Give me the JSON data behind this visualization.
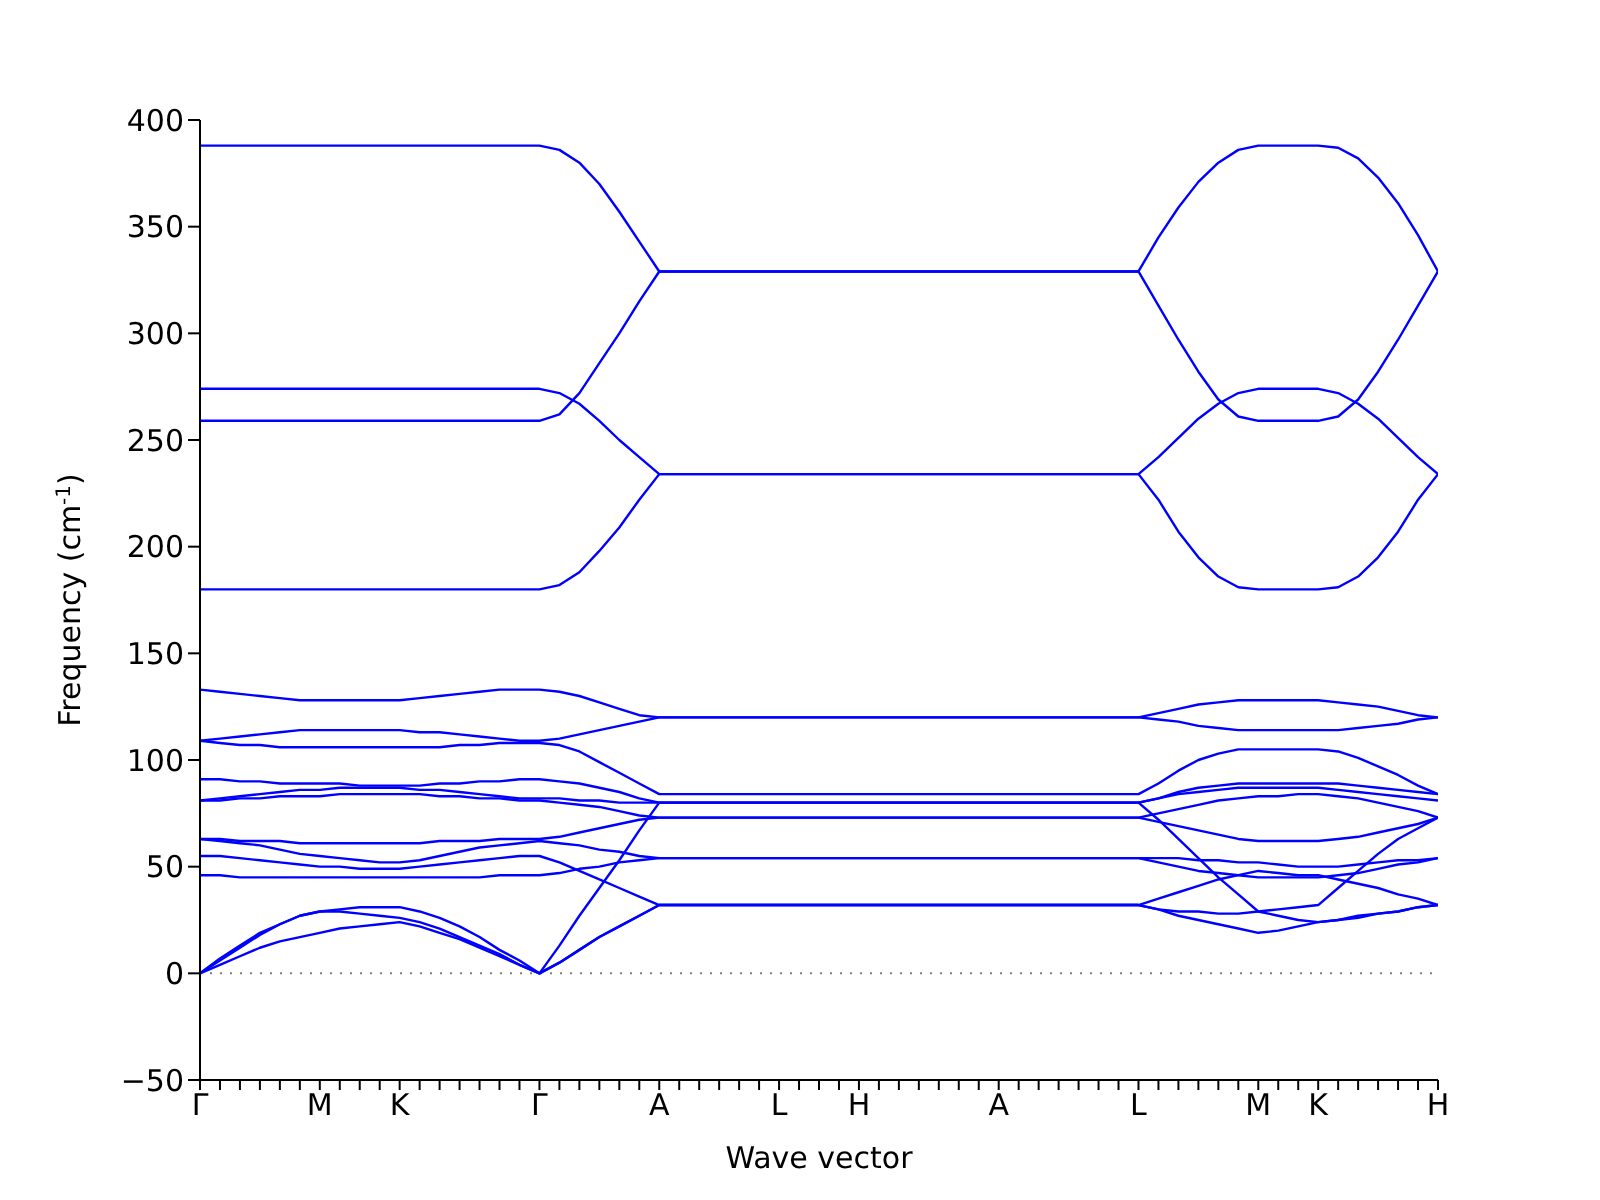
{
  "chart_data": {
    "type": "line",
    "xlabel": "Wave vector",
    "ylabel": "Frequency (cm$^{-1}$)",
    "categories": [
      "Γ",
      null,
      null,
      null,
      null,
      null,
      "M",
      null,
      null,
      null,
      "K",
      null,
      null,
      null,
      null,
      null,
      null,
      "Γ",
      null,
      null,
      null,
      null,
      null,
      "A",
      null,
      null,
      null,
      null,
      null,
      "L",
      null,
      null,
      null,
      "H",
      null,
      null,
      null,
      null,
      null,
      null,
      "A",
      null,
      null,
      null,
      null,
      null,
      null,
      "L",
      null,
      null,
      null,
      null,
      null,
      "M",
      null,
      null,
      "K",
      null,
      null,
      null,
      null,
      null,
      "H"
    ],
    "ylim": [
      -50,
      400
    ],
    "yticks": [
      -50,
      0,
      50,
      100,
      150,
      200,
      250,
      300,
      350,
      400
    ],
    "grid": false,
    "ref_lines": [
      {
        "axis": "y",
        "value": 0,
        "color": "#808080",
        "line_style": "dotted"
      }
    ],
    "series": [
      {
        "color": "#0000ff",
        "values": [
          388,
          388,
          388,
          388,
          388,
          388,
          388,
          388,
          388,
          388,
          388,
          388,
          388,
          388,
          388,
          388,
          388,
          388,
          386,
          380,
          370,
          357,
          343,
          329,
          329,
          329,
          329,
          329,
          329,
          329,
          329,
          329,
          329,
          329,
          329,
          329,
          329,
          329,
          329,
          329,
          329,
          329,
          329,
          329,
          329,
          329,
          329,
          329,
          345,
          359,
          371,
          380,
          386,
          388,
          388,
          388,
          388,
          387,
          382,
          373,
          361,
          346,
          329
        ]
      },
      {
        "color": "#0000ff",
        "values": [
          259,
          259,
          259,
          259,
          259,
          259,
          259,
          259,
          259,
          259,
          259,
          259,
          259,
          259,
          259,
          259,
          259,
          259,
          262,
          272,
          286,
          300,
          315,
          329,
          329,
          329,
          329,
          329,
          329,
          329,
          329,
          329,
          329,
          329,
          329,
          329,
          329,
          329,
          329,
          329,
          329,
          329,
          329,
          329,
          329,
          329,
          329,
          329,
          313,
          297,
          282,
          269,
          261,
          259,
          259,
          259,
          259,
          261,
          269,
          282,
          297,
          313,
          329
        ]
      },
      {
        "color": "#0000ff",
        "values": [
          274,
          274,
          274,
          274,
          274,
          274,
          274,
          274,
          274,
          274,
          274,
          274,
          274,
          274,
          274,
          274,
          274,
          274,
          272,
          267,
          259,
          250,
          242,
          234,
          234,
          234,
          234,
          234,
          234,
          234,
          234,
          234,
          234,
          234,
          234,
          234,
          234,
          234,
          234,
          234,
          234,
          234,
          234,
          234,
          234,
          234,
          234,
          234,
          242,
          251,
          260,
          267,
          272,
          274,
          274,
          274,
          274,
          272,
          267,
          260,
          251,
          242,
          234
        ]
      },
      {
        "color": "#0000ff",
        "values": [
          180,
          180,
          180,
          180,
          180,
          180,
          180,
          180,
          180,
          180,
          180,
          180,
          180,
          180,
          180,
          180,
          180,
          180,
          182,
          188,
          198,
          209,
          222,
          234,
          234,
          234,
          234,
          234,
          234,
          234,
          234,
          234,
          234,
          234,
          234,
          234,
          234,
          234,
          234,
          234,
          234,
          234,
          234,
          234,
          234,
          234,
          234,
          234,
          222,
          207,
          195,
          186,
          181,
          180,
          180,
          180,
          180,
          181,
          186,
          195,
          207,
          222,
          234
        ]
      },
      {
        "color": "#0000ff",
        "values": [
          133,
          132,
          131,
          130,
          129,
          128,
          128,
          128,
          128,
          128,
          128,
          129,
          130,
          131,
          132,
          133,
          133,
          133,
          132,
          130,
          127,
          124,
          121,
          120,
          120,
          120,
          120,
          120,
          120,
          120,
          120,
          120,
          120,
          120,
          120,
          120,
          120,
          120,
          120,
          120,
          120,
          120,
          120,
          120,
          120,
          120,
          120,
          120,
          122,
          124,
          126,
          127,
          128,
          128,
          128,
          128,
          128,
          127,
          126,
          125,
          123,
          121,
          120
        ]
      },
      {
        "color": "#0000ff",
        "values": [
          109,
          110,
          111,
          112,
          113,
          114,
          114,
          114,
          114,
          114,
          114,
          113,
          113,
          112,
          111,
          110,
          109,
          109,
          110,
          112,
          114,
          116,
          118,
          120,
          120,
          120,
          120,
          120,
          120,
          120,
          120,
          120,
          120,
          120,
          120,
          120,
          120,
          120,
          120,
          120,
          120,
          120,
          120,
          120,
          120,
          120,
          120,
          120,
          119,
          118,
          116,
          115,
          114,
          114,
          114,
          114,
          114,
          114,
          115,
          116,
          117,
          119,
          120
        ]
      },
      {
        "color": "#0000ff",
        "values": [
          109,
          108,
          107,
          107,
          106,
          106,
          106,
          106,
          106,
          106,
          106,
          106,
          106,
          107,
          107,
          108,
          108,
          108,
          107,
          104,
          99,
          94,
          89,
          84,
          84,
          84,
          84,
          84,
          84,
          84,
          84,
          84,
          84,
          84,
          84,
          84,
          84,
          84,
          84,
          84,
          84,
          84,
          84,
          84,
          84,
          84,
          84,
          84,
          89,
          95,
          100,
          103,
          105,
          105,
          105,
          105,
          105,
          104,
          101,
          97,
          93,
          88,
          84
        ]
      },
      {
        "color": "#0000ff",
        "values": [
          91,
          91,
          90,
          90,
          89,
          89,
          89,
          89,
          88,
          88,
          88,
          88,
          89,
          89,
          90,
          90,
          91,
          91,
          90,
          89,
          87,
          85,
          82,
          80,
          80,
          80,
          80,
          80,
          80,
          80,
          80,
          80,
          80,
          80,
          80,
          80,
          80,
          80,
          80,
          80,
          80,
          80,
          80,
          80,
          80,
          80,
          80,
          80,
          82,
          85,
          87,
          88,
          89,
          89,
          89,
          89,
          89,
          89,
          88,
          87,
          86,
          85,
          84
        ]
      },
      {
        "color": "#0000ff",
        "values": [
          81,
          82,
          83,
          84,
          85,
          86,
          86,
          87,
          87,
          87,
          87,
          86,
          86,
          85,
          84,
          83,
          82,
          82,
          82,
          81,
          81,
          80,
          80,
          80,
          80,
          80,
          80,
          80,
          80,
          80,
          80,
          80,
          80,
          80,
          80,
          80,
          80,
          80,
          80,
          80,
          80,
          80,
          80,
          80,
          80,
          80,
          80,
          80,
          82,
          84,
          85,
          86,
          87,
          87,
          87,
          87,
          87,
          86,
          85,
          84,
          83,
          82,
          81
        ]
      },
      {
        "color": "#0000ff",
        "values": [
          81,
          81,
          82,
          82,
          83,
          83,
          83,
          84,
          84,
          84,
          84,
          84,
          83,
          83,
          82,
          82,
          81,
          81,
          80,
          79,
          78,
          76,
          74,
          73,
          73,
          73,
          73,
          73,
          73,
          73,
          73,
          73,
          73,
          73,
          73,
          73,
          73,
          73,
          73,
          73,
          73,
          73,
          73,
          73,
          73,
          73,
          73,
          73,
          75,
          77,
          79,
          81,
          82,
          83,
          83,
          84,
          84,
          83,
          82,
          80,
          78,
          76,
          73
        ]
      },
      {
        "color": "#0000ff",
        "values": [
          63,
          63,
          62,
          62,
          62,
          61,
          61,
          61,
          61,
          61,
          61,
          61,
          62,
          62,
          62,
          63,
          63,
          63,
          64,
          66,
          68,
          70,
          72,
          73,
          73,
          73,
          73,
          73,
          73,
          73,
          73,
          73,
          73,
          73,
          73,
          73,
          73,
          73,
          73,
          73,
          73,
          73,
          73,
          73,
          73,
          73,
          73,
          73,
          71,
          69,
          67,
          65,
          63,
          62,
          62,
          62,
          62,
          63,
          64,
          66,
          68,
          70,
          73
        ]
      },
      {
        "color": "#0000ff",
        "values": [
          63,
          62,
          61,
          60,
          58,
          56,
          55,
          54,
          53,
          52,
          52,
          53,
          55,
          57,
          59,
          60,
          61,
          62,
          61,
          60,
          58,
          57,
          55,
          54,
          54,
          54,
          54,
          54,
          54,
          54,
          54,
          54,
          54,
          54,
          54,
          54,
          54,
          54,
          54,
          54,
          54,
          54,
          54,
          54,
          54,
          54,
          54,
          54,
          54,
          54,
          53,
          53,
          52,
          52,
          51,
          50,
          50,
          50,
          51,
          52,
          53,
          53,
          54
        ]
      },
      {
        "color": "#0000ff",
        "values": [
          55,
          55,
          54,
          53,
          52,
          51,
          50,
          50,
          49,
          49,
          49,
          50,
          51,
          52,
          53,
          54,
          55,
          55,
          52,
          48,
          44,
          40,
          36,
          32,
          32,
          32,
          32,
          32,
          32,
          32,
          32,
          32,
          32,
          32,
          32,
          32,
          32,
          32,
          32,
          32,
          32,
          32,
          32,
          32,
          32,
          32,
          32,
          32,
          35,
          38,
          41,
          44,
          46,
          48,
          47,
          46,
          46,
          44,
          42,
          40,
          37,
          35,
          32
        ]
      },
      {
        "color": "#0000ff",
        "values": [
          46,
          46,
          45,
          45,
          45,
          45,
          45,
          45,
          45,
          45,
          45,
          45,
          45,
          45,
          45,
          46,
          46,
          46,
          47,
          49,
          50,
          52,
          53,
          54,
          54,
          54,
          54,
          54,
          54,
          54,
          54,
          54,
          54,
          54,
          54,
          54,
          54,
          54,
          54,
          54,
          54,
          54,
          54,
          54,
          54,
          54,
          54,
          54,
          52,
          50,
          48,
          47,
          46,
          45,
          45,
          45,
          45,
          46,
          47,
          49,
          51,
          52,
          54
        ]
      },
      {
        "color": "#0000ff",
        "values": [
          0,
          7,
          13,
          19,
          23,
          27,
          29,
          30,
          31,
          31,
          31,
          29,
          26,
          22,
          17,
          11,
          6,
          0,
          13,
          27,
          40,
          53,
          67,
          80,
          80,
          80,
          80,
          80,
          80,
          80,
          80,
          80,
          80,
          80,
          80,
          80,
          80,
          80,
          80,
          80,
          80,
          80,
          80,
          80,
          80,
          80,
          80,
          80,
          72,
          63,
          54,
          45,
          37,
          29,
          27,
          25,
          24,
          25,
          26,
          28,
          29,
          31,
          32
        ]
      },
      {
        "color": "#0000ff",
        "values": [
          0,
          6,
          12,
          18,
          23,
          27,
          29,
          29,
          28,
          27,
          26,
          24,
          21,
          17,
          13,
          9,
          4,
          0,
          5,
          11,
          17,
          22,
          27,
          32,
          32,
          32,
          32,
          32,
          32,
          32,
          32,
          32,
          32,
          32,
          32,
          32,
          32,
          32,
          32,
          32,
          32,
          32,
          32,
          32,
          32,
          32,
          32,
          32,
          30,
          27,
          25,
          23,
          21,
          19,
          20,
          22,
          24,
          25,
          27,
          28,
          29,
          31,
          32
        ]
      },
      {
        "color": "#0000ff",
        "values": [
          0,
          4,
          8,
          12,
          15,
          17,
          19,
          21,
          22,
          23,
          24,
          22,
          19,
          16,
          12,
          8,
          4,
          0,
          5,
          11,
          17,
          22,
          27,
          32,
          32,
          32,
          32,
          32,
          32,
          32,
          32,
          32,
          32,
          32,
          32,
          32,
          32,
          32,
          32,
          32,
          32,
          32,
          32,
          32,
          32,
          32,
          32,
          32,
          30,
          29,
          29,
          28,
          28,
          29,
          30,
          31,
          32,
          40,
          48,
          56,
          63,
          68,
          73
        ]
      }
    ]
  }
}
